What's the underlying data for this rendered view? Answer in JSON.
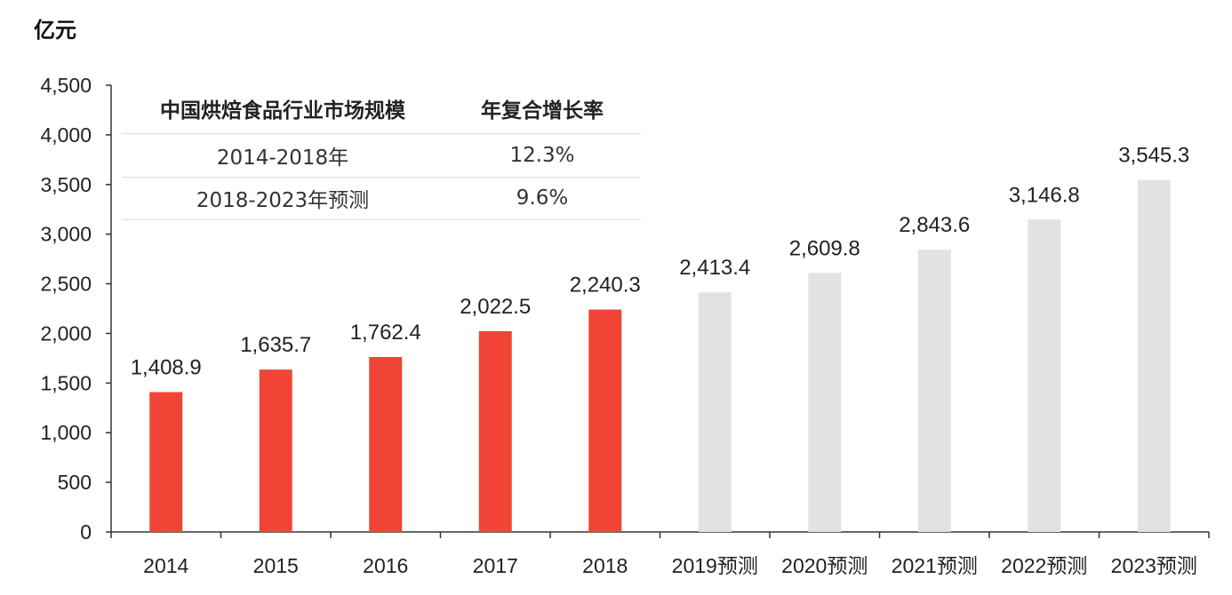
{
  "chart_data": {
    "type": "bar",
    "unit_label": "亿元",
    "categories": [
      "2014",
      "2015",
      "2016",
      "2017",
      "2018",
      "2019预测",
      "2020预测",
      "2021预测",
      "2022预测",
      "2023预测"
    ],
    "values": [
      1408.9,
      1635.7,
      1762.4,
      2022.5,
      2240.3,
      2413.4,
      2609.8,
      2843.6,
      3146.8,
      3545.3
    ],
    "value_labels": [
      "1,408.9",
      "1,635.7",
      "1,762.4",
      "2,022.5",
      "2,240.3",
      "2,413.4",
      "2,609.8",
      "2,843.6",
      "3,146.8",
      "3,545.3"
    ],
    "forecast": [
      false,
      false,
      false,
      false,
      false,
      true,
      true,
      true,
      true,
      true
    ],
    "ylim": [
      0,
      4500
    ],
    "yticks": [
      0,
      500,
      1000,
      1500,
      2000,
      2500,
      3000,
      3500,
      4000,
      4500
    ],
    "ytick_labels": [
      "0",
      "500",
      "1,000",
      "1,500",
      "2,000",
      "2,500",
      "3,000",
      "3,500",
      "4,000",
      "4,500"
    ],
    "grid": false,
    "colors": {
      "actual": "#f04536",
      "forecast": "#e2e2e2"
    }
  },
  "table": {
    "headers": [
      "中国烘焙食品行业市场规模",
      "年复合增长率"
    ],
    "rows": [
      [
        "2014-2018年",
        "12.3%"
      ],
      [
        "2018-2023年预测",
        "9.6%"
      ]
    ]
  }
}
